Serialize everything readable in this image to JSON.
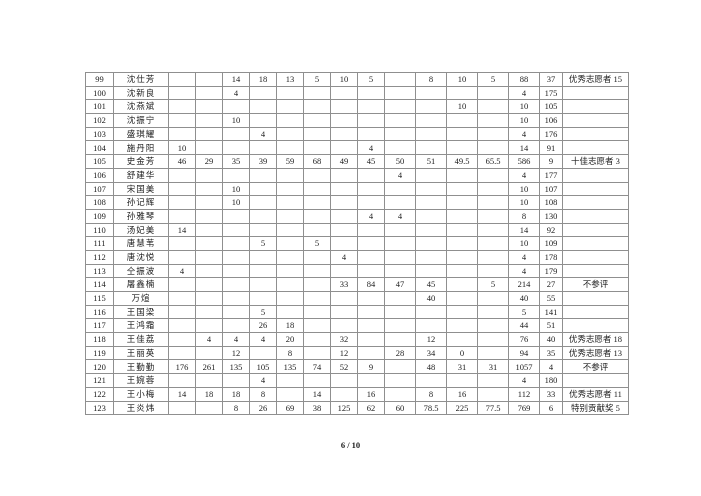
{
  "colors": {
    "grid": "#8f8f8f",
    "award_orange": "#ffc000",
    "award_red": "#f5483b",
    "award_green": "#52c36a",
    "text": "#1c1c1c"
  },
  "footer": {
    "page_indicator": "6 / 10"
  },
  "table": {
    "rows": [
      {
        "num": "99",
        "name": "沈仕芳",
        "cells": [
          "",
          "",
          "14",
          "18",
          "13",
          "5",
          "10",
          "5",
          "",
          "8",
          "10",
          "5"
        ],
        "total": "88",
        "rank": "37",
        "award": "优秀志愿者 15",
        "award_style": "orange"
      },
      {
        "num": "100",
        "name": "沈新良",
        "cells": [
          "",
          "",
          "4",
          "",
          "",
          "",
          "",
          "",
          "",
          "",
          "",
          ""
        ],
        "total": "4",
        "rank": "175",
        "award": "",
        "award_style": "black"
      },
      {
        "num": "101",
        "name": "沈燕斌",
        "cells": [
          "",
          "",
          "",
          "",
          "",
          "",
          "",
          "",
          "",
          "",
          "10",
          ""
        ],
        "total": "10",
        "rank": "105",
        "award": "",
        "award_style": "black"
      },
      {
        "num": "102",
        "name": "沈振宁",
        "cells": [
          "",
          "",
          "10",
          "",
          "",
          "",
          "",
          "",
          "",
          "",
          "",
          ""
        ],
        "total": "10",
        "rank": "106",
        "award": "",
        "award_style": "black"
      },
      {
        "num": "103",
        "name": "盛琪耀",
        "cells": [
          "",
          "",
          "",
          "4",
          "",
          "",
          "",
          "",
          "",
          "",
          "",
          ""
        ],
        "total": "4",
        "rank": "176",
        "award": "",
        "award_style": "black"
      },
      {
        "num": "104",
        "name": "施丹阳",
        "cells": [
          "10",
          "",
          "",
          "",
          "",
          "",
          "",
          "4",
          "",
          "",
          "",
          ""
        ],
        "total": "14",
        "rank": "91",
        "award": "",
        "award_style": "black"
      },
      {
        "num": "105",
        "name": "史金芳",
        "cells": [
          "46",
          "29",
          "35",
          "39",
          "59",
          "68",
          "49",
          "45",
          "50",
          "51",
          "49.5",
          "65.5"
        ],
        "total": "586",
        "rank": "9",
        "award": "十佳志愿者 3",
        "award_style": "red"
      },
      {
        "num": "106",
        "name": "舒建华",
        "cells": [
          "",
          "",
          "",
          "",
          "",
          "",
          "",
          "",
          "4",
          "",
          "",
          ""
        ],
        "total": "4",
        "rank": "177",
        "award": "",
        "award_style": "black"
      },
      {
        "num": "107",
        "name": "宋国美",
        "cells": [
          "",
          "",
          "10",
          "",
          "",
          "",
          "",
          "",
          "",
          "",
          "",
          ""
        ],
        "total": "10",
        "rank": "107",
        "award": "",
        "award_style": "black"
      },
      {
        "num": "108",
        "name": "孙记辉",
        "cells": [
          "",
          "",
          "10",
          "",
          "",
          "",
          "",
          "",
          "",
          "",
          "",
          ""
        ],
        "total": "10",
        "rank": "108",
        "award": "",
        "award_style": "black"
      },
      {
        "num": "109",
        "name": "孙雅琴",
        "cells": [
          "",
          "",
          "",
          "",
          "",
          "",
          "",
          "4",
          "4",
          "",
          "",
          ""
        ],
        "total": "8",
        "rank": "130",
        "award": "",
        "award_style": "black"
      },
      {
        "num": "110",
        "name": "汤妃美",
        "cells": [
          "14",
          "",
          "",
          "",
          "",
          "",
          "",
          "",
          "",
          "",
          "",
          ""
        ],
        "total": "14",
        "rank": "92",
        "award": "",
        "award_style": "black"
      },
      {
        "num": "111",
        "name": "唐慧苇",
        "cells": [
          "",
          "",
          "",
          "5",
          "",
          "5",
          "",
          "",
          "",
          "",
          "",
          ""
        ],
        "total": "10",
        "rank": "109",
        "award": "",
        "award_style": "black"
      },
      {
        "num": "112",
        "name": "唐沈悦",
        "cells": [
          "",
          "",
          "",
          "",
          "",
          "",
          "4",
          "",
          "",
          "",
          "",
          ""
        ],
        "total": "4",
        "rank": "178",
        "award": "",
        "award_style": "black"
      },
      {
        "num": "113",
        "name": "仝振波",
        "cells": [
          "4",
          "",
          "",
          "",
          "",
          "",
          "",
          "",
          "",
          "",
          "",
          ""
        ],
        "total": "4",
        "rank": "179",
        "award": "",
        "award_style": "black"
      },
      {
        "num": "114",
        "name": "屠鑫楠",
        "cells": [
          "",
          "",
          "",
          "",
          "",
          "",
          "33",
          "84",
          "47",
          "45",
          "",
          "5"
        ],
        "total": "214",
        "rank": "27",
        "award": "不参评",
        "award_style": "black"
      },
      {
        "num": "115",
        "name": "万煊",
        "cells": [
          "",
          "",
          "",
          "",
          "",
          "",
          "",
          "",
          "",
          "40",
          "",
          ""
        ],
        "total": "40",
        "rank": "55",
        "award": "",
        "award_style": "black"
      },
      {
        "num": "116",
        "name": "王国梁",
        "cells": [
          "",
          "",
          "",
          "5",
          "",
          "",
          "",
          "",
          "",
          "",
          "",
          ""
        ],
        "total": "5",
        "rank": "141",
        "award": "",
        "award_style": "black"
      },
      {
        "num": "117",
        "name": "王鸿霜",
        "cells": [
          "",
          "",
          "",
          "26",
          "18",
          "",
          "",
          "",
          "",
          "",
          "",
          ""
        ],
        "total": "44",
        "rank": "51",
        "award": "",
        "award_style": "black"
      },
      {
        "num": "118",
        "name": "王佳荔",
        "cells": [
          "",
          "4",
          "4",
          "4",
          "20",
          "",
          "32",
          "",
          "",
          "12",
          "",
          ""
        ],
        "total": "76",
        "rank": "40",
        "award": "优秀志愿者 18",
        "award_style": "orange"
      },
      {
        "num": "119",
        "name": "王丽英",
        "cells": [
          "",
          "",
          "12",
          "",
          "8",
          "",
          "12",
          "",
          "28",
          "34",
          "0",
          ""
        ],
        "total": "94",
        "rank": "35",
        "award": "优秀志愿者 13",
        "award_style": "orange"
      },
      {
        "num": "120",
        "name": "王勤勤",
        "cells": [
          "176",
          "261",
          "135",
          "105",
          "135",
          "74",
          "52",
          "9",
          "",
          "48",
          "31",
          "31"
        ],
        "total": "1057",
        "rank": "4",
        "award": "不参评",
        "award_style": "black"
      },
      {
        "num": "121",
        "name": "王婉蓉",
        "cells": [
          "",
          "",
          "",
          "4",
          "",
          "",
          "",
          "",
          "",
          "",
          "",
          ""
        ],
        "total": "4",
        "rank": "180",
        "award": "",
        "award_style": "black"
      },
      {
        "num": "122",
        "name": "王小梅",
        "cells": [
          "14",
          "18",
          "18",
          "8",
          "",
          "14",
          "",
          "16",
          "",
          "8",
          "16",
          ""
        ],
        "total": "112",
        "rank": "33",
        "award": "优秀志愿者 11",
        "award_style": "orange"
      },
      {
        "num": "123",
        "name": "王炎炜",
        "cells": [
          "",
          "",
          "8",
          "26",
          "69",
          "38",
          "125",
          "62",
          "60",
          "78.5",
          "225",
          "77.5"
        ],
        "total": "769",
        "rank": "6",
        "award": "特别贡献奖 5",
        "award_style": "green"
      }
    ]
  }
}
